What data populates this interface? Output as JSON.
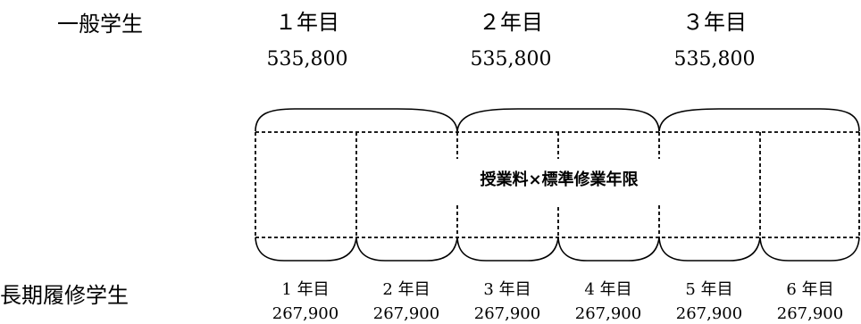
{
  "general_student": {
    "label": "一般学生",
    "years": [
      {
        "year": "１年目",
        "fee": "535,800"
      },
      {
        "year": "２年目",
        "fee": "535,800"
      },
      {
        "year": "３年目",
        "fee": "535,800"
      }
    ]
  },
  "long_term_student": {
    "label": "長期履修学生",
    "years": [
      {
        "year": "1 年目",
        "fee": "267,900"
      },
      {
        "year": "2 年目",
        "fee": "267,900"
      },
      {
        "year": "3 年目",
        "fee": "267,900"
      },
      {
        "year": "4 年目",
        "fee": "267,900"
      },
      {
        "year": "5 年目",
        "fee": "267,900"
      },
      {
        "year": "6 年目",
        "fee": "267,900"
      }
    ]
  },
  "formula": "授業料×標準修業年限",
  "colors": {
    "text": "#000000",
    "line": "#000000",
    "background": "#ffffff"
  }
}
